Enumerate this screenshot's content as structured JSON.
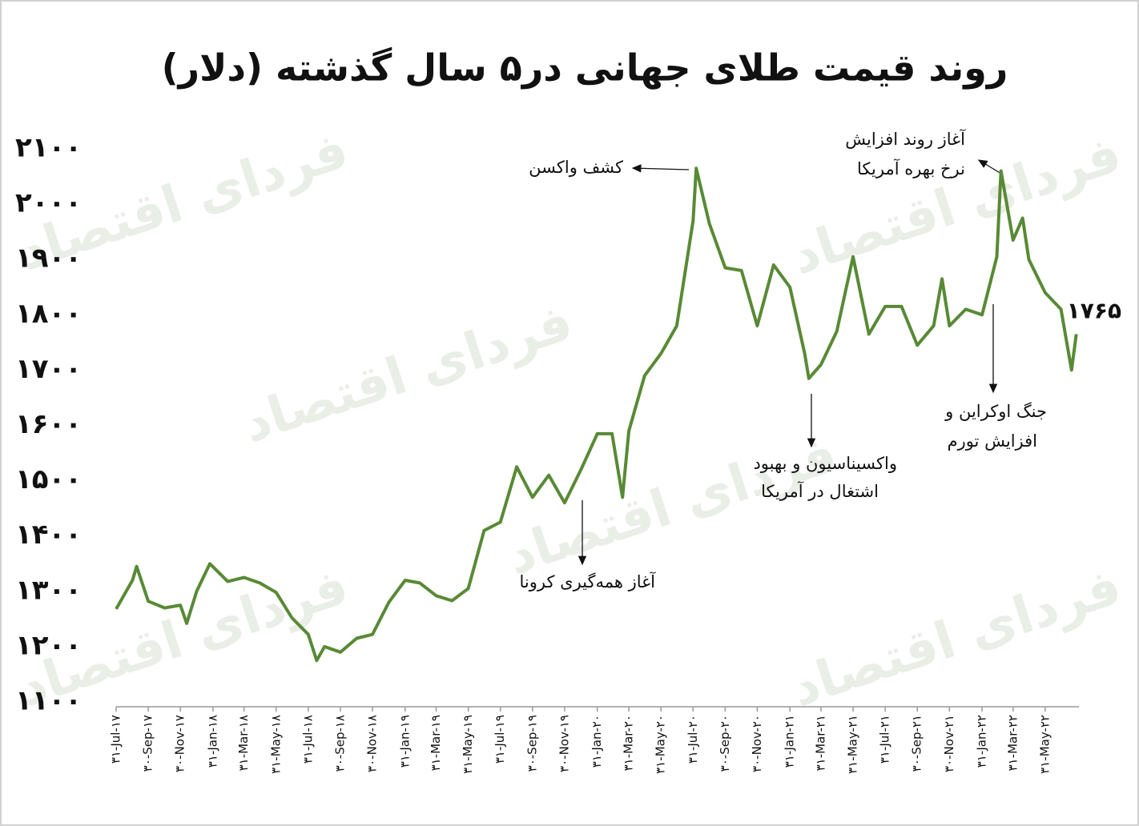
{
  "chart_data": {
    "type": "line",
    "title": "روند قیمت طلای جهانی در۵ سال گذشته (دلار)",
    "watermark": "فردای اقتصاد",
    "color": "#588a35",
    "x": [
      "2017-07-31",
      "2017-08-31",
      "2017-09-08",
      "2017-09-30",
      "2017-10-31",
      "2017-11-30",
      "2017-12-12",
      "2017-12-31",
      "2018-01-25",
      "2018-02-28",
      "2018-03-31",
      "2018-04-30",
      "2018-05-31",
      "2018-06-30",
      "2018-07-31",
      "2018-08-16",
      "2018-08-31",
      "2018-09-30",
      "2018-10-31",
      "2018-11-30",
      "2018-12-31",
      "2019-01-31",
      "2019-02-28",
      "2019-03-31",
      "2019-04-30",
      "2019-05-31",
      "2019-06-30",
      "2019-07-31",
      "2019-08-31",
      "2019-09-30",
      "2019-10-31",
      "2019-11-30",
      "2019-12-31",
      "2020-01-31",
      "2020-02-28",
      "2020-03-19",
      "2020-03-31",
      "2020-04-30",
      "2020-05-31",
      "2020-06-30",
      "2020-07-31",
      "2020-08-06",
      "2020-08-31",
      "2020-09-30",
      "2020-10-31",
      "2020-11-30",
      "2020-12-31",
      "2021-01-31",
      "2021-02-28",
      "2021-03-08",
      "2021-03-31",
      "2021-04-30",
      "2021-05-31",
      "2021-06-30",
      "2021-07-31",
      "2021-08-31",
      "2021-09-30",
      "2021-10-31",
      "2021-11-16",
      "2021-11-30",
      "2021-12-31",
      "2022-01-31",
      "2022-02-28",
      "2022-03-08",
      "2022-03-31",
      "2022-04-18",
      "2022-04-30",
      "2022-05-31",
      "2022-06-30",
      "2022-07-20",
      "2022-07-29"
    ],
    "values": [
      1268,
      1320,
      1345,
      1282,
      1270,
      1275,
      1242,
      1300,
      1350,
      1318,
      1325,
      1315,
      1298,
      1252,
      1222,
      1175,
      1200,
      1190,
      1215,
      1222,
      1280,
      1320,
      1315,
      1292,
      1283,
      1305,
      1410,
      1425,
      1525,
      1470,
      1510,
      1460,
      1520,
      1585,
      1585,
      1470,
      1590,
      1690,
      1730,
      1780,
      1970,
      2065,
      1965,
      1885,
      1880,
      1780,
      1890,
      1850,
      1730,
      1685,
      1710,
      1770,
      1905,
      1765,
      1815,
      1815,
      1745,
      1780,
      1865,
      1780,
      1810,
      1800,
      1905,
      2060,
      1935,
      1975,
      1900,
      1840,
      1810,
      1700,
      1765
    ],
    "xlim": [
      "2017-07-31",
      "2022-07-31"
    ],
    "xticks": [
      {
        "value": "2017-07-31",
        "label": "۳۱-Jul-۱۷"
      },
      {
        "value": "2017-09-30",
        "label": "۳۰-Sep-۱۷"
      },
      {
        "value": "2017-11-30",
        "label": "۳۰-Nov-۱۷"
      },
      {
        "value": "2018-01-31",
        "label": "۳۱-Jan-۱۸"
      },
      {
        "value": "2018-03-31",
        "label": "۳۱-Mar-۱۸"
      },
      {
        "value": "2018-05-31",
        "label": "۳۱-May-۱۸"
      },
      {
        "value": "2018-07-31",
        "label": "۳۱-Jul-۱۸"
      },
      {
        "value": "2018-09-30",
        "label": "۳۰-Sep-۱۸"
      },
      {
        "value": "2018-11-30",
        "label": "۳۰-Nov-۱۸"
      },
      {
        "value": "2019-01-31",
        "label": "۳۱-Jan-۱۹"
      },
      {
        "value": "2019-03-31",
        "label": "۳۱-Mar-۱۹"
      },
      {
        "value": "2019-05-31",
        "label": "۳۱-May-۱۹"
      },
      {
        "value": "2019-07-31",
        "label": "۳۱-Jul-۱۹"
      },
      {
        "value": "2019-09-30",
        "label": "۳۰-Sep-۱۹"
      },
      {
        "value": "2019-11-30",
        "label": "۳۰-Nov-۱۹"
      },
      {
        "value": "2020-01-31",
        "label": "۳۱-Jan-۲۰"
      },
      {
        "value": "2020-03-31",
        "label": "۳۱-Mar-۲۰"
      },
      {
        "value": "2020-05-31",
        "label": "۳۱-May-۲۰"
      },
      {
        "value": "2020-07-31",
        "label": "۳۱-Jul-۲۰"
      },
      {
        "value": "2020-09-30",
        "label": "۳۰-Sep-۲۰"
      },
      {
        "value": "2020-11-30",
        "label": "۳۰-Nov-۲۰"
      },
      {
        "value": "2021-01-31",
        "label": "۳۱-Jan-۲۱"
      },
      {
        "value": "2021-03-31",
        "label": "۳۱-Mar-۲۱"
      },
      {
        "value": "2021-05-31",
        "label": "۳۱-May-۲۱"
      },
      {
        "value": "2021-07-31",
        "label": "۳۱-Jul-۲۱"
      },
      {
        "value": "2021-09-30",
        "label": "۳۰-Sep-۲۱"
      },
      {
        "value": "2021-11-30",
        "label": "۳۰-Nov-۲۱"
      },
      {
        "value": "2022-01-31",
        "label": "۳۱-Jan-۲۲"
      },
      {
        "value": "2022-03-31",
        "label": "۳۱-Mar-۲۲"
      },
      {
        "value": "2022-05-31",
        "label": "۳۱-May-۲۲"
      }
    ],
    "ylim": [
      1100,
      2100
    ],
    "yticks": [
      {
        "value": 1100,
        "label": "۱۱۰۰"
      },
      {
        "value": 1200,
        "label": "۱۲۰۰"
      },
      {
        "value": 1300,
        "label": "۱۳۰۰"
      },
      {
        "value": 1400,
        "label": "۱۴۰۰"
      },
      {
        "value": 1500,
        "label": "۱۵۰۰"
      },
      {
        "value": 1600,
        "label": "۱۶۰۰"
      },
      {
        "value": 1700,
        "label": "۱۷۰۰"
      },
      {
        "value": 1800,
        "label": "۱۸۰۰"
      },
      {
        "value": 1900,
        "label": "۱۹۰۰"
      },
      {
        "value": 2000,
        "label": "۲۰۰۰"
      },
      {
        "value": 2100,
        "label": "۲۱۰۰"
      }
    ],
    "end_label": "۱۷۶۵",
    "annotations": [
      {
        "text": [
          "کشف واکسن"
        ]
      },
      {
        "text": [
          "آغاز روند افزایش",
          "نرخ بهره آمریکا"
        ]
      },
      {
        "text": [
          "آغاز همه‌گیری کرونا"
        ]
      },
      {
        "text": [
          "واکسیناسیون و بهبود",
          "اشتغال در آمریکا"
        ]
      },
      {
        "text": [
          "جنگ اوکراین و",
          "افزایش تورم"
        ]
      }
    ]
  }
}
